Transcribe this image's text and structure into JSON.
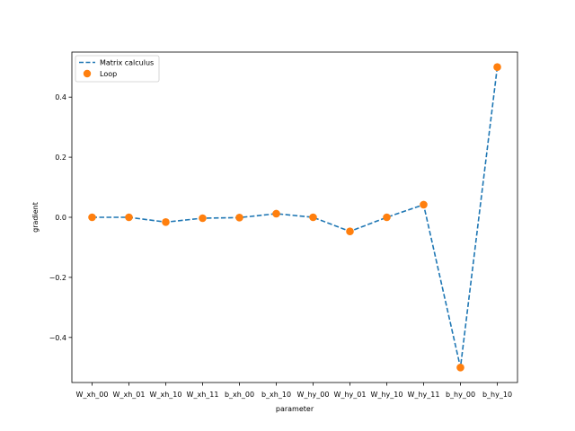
{
  "chart_data": {
    "type": "line",
    "categories": [
      "W_xh_00",
      "W_xh_01",
      "W_xh_10",
      "W_xh_11",
      "b_xh_00",
      "b_xh_10",
      "W_hy_00",
      "W_hy_01",
      "W_hy_10",
      "W_hy_11",
      "b_hy_00",
      "b_hy_10"
    ],
    "series": [
      {
        "name": "Matrix calculus",
        "style": "dashed-line",
        "color": "#1f77b4",
        "values": [
          0.0,
          0.0,
          -0.016,
          -0.003,
          -0.001,
          0.012,
          0.0,
          -0.047,
          0.0,
          0.042,
          -0.5,
          0.5
        ]
      },
      {
        "name": "Loop",
        "style": "markers",
        "color": "#ff7f0e",
        "values": [
          0.0,
          0.0,
          -0.016,
          -0.003,
          -0.001,
          0.012,
          0.0,
          -0.047,
          0.0,
          0.042,
          -0.5,
          0.5
        ]
      }
    ],
    "title": "",
    "xlabel": "parameter",
    "ylabel": "gradient",
    "ylim": [
      -0.55,
      0.55
    ],
    "yticks": [
      -0.4,
      -0.2,
      0.0,
      0.2,
      0.4
    ],
    "ytick_labels": [
      "−0.4",
      "−0.2",
      "0.0",
      "0.2",
      "0.4"
    ],
    "grid": false,
    "legend_position": "top-left"
  }
}
